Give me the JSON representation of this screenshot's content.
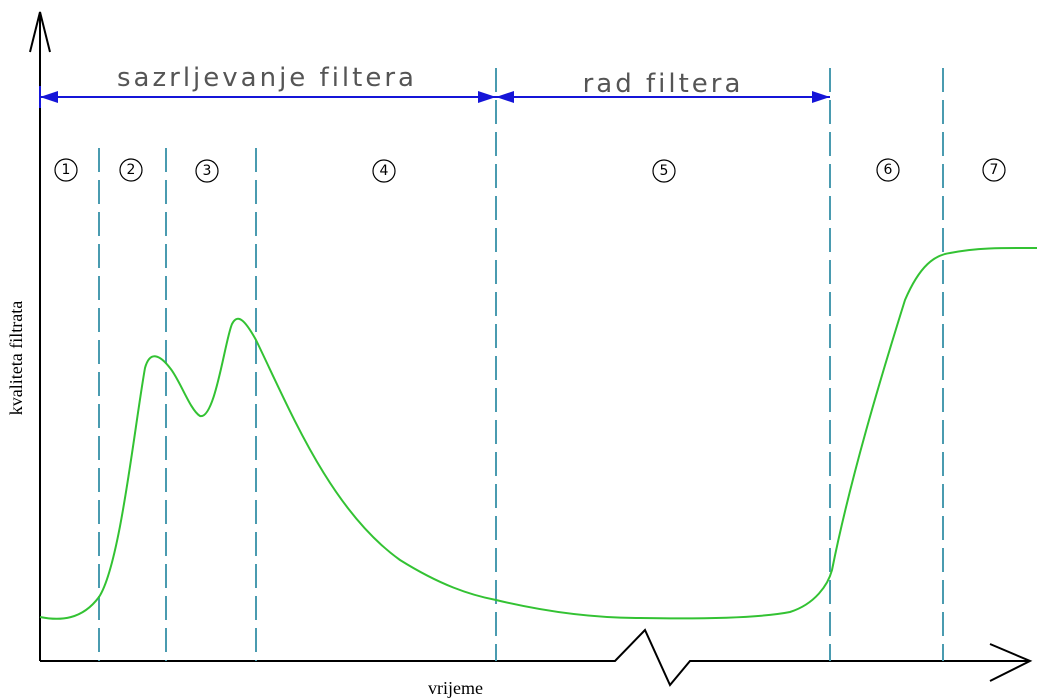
{
  "phases": [
    {
      "label": "sazrljevanje filtera"
    },
    {
      "label": "rad filtera"
    }
  ],
  "stages": [
    "1",
    "2",
    "3",
    "4",
    "5",
    "6",
    "7"
  ],
  "axes": {
    "x_label": "vrijeme",
    "y_label": "kvaliteta filtrata"
  },
  "colors": {
    "curve": "#33c233",
    "dividers": "#4a9bb0",
    "phase_arrows": "#1515d8",
    "axes": "#000000"
  }
}
